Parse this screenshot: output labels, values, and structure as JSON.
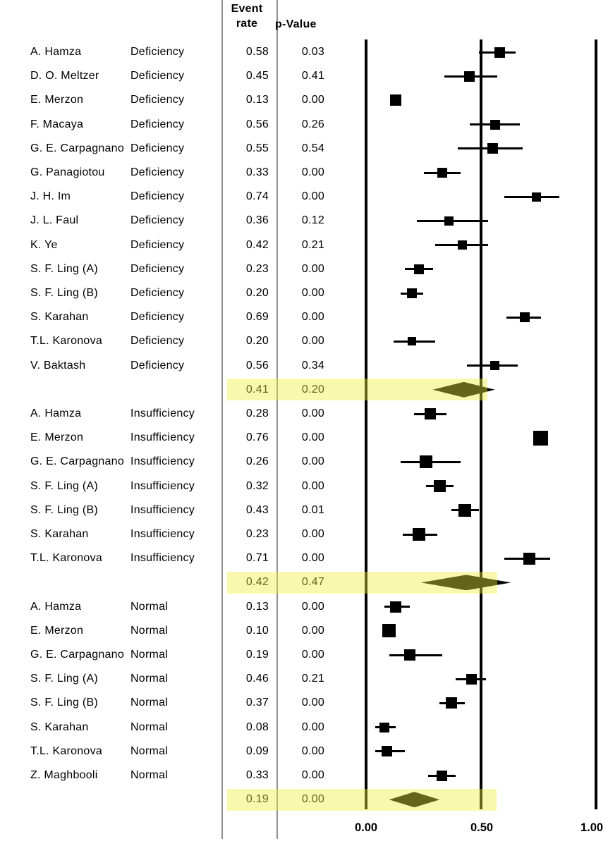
{
  "table": {
    "header_event_line1": "Event",
    "header_event_line2": "rate",
    "header_p_value": "p-Value"
  },
  "colors": {
    "highlight_band_overlay": "rgba(240,240,60,0.42)",
    "highlight_band_on_white": "#f8f8b0",
    "summary_diamond_olive_seen": "#62621a",
    "marker": "#000000",
    "column_line": "#8f8f8f"
  },
  "chart_data": {
    "type": "forest",
    "title": "",
    "xlabel": "",
    "x_axis": {
      "range": [
        0,
        1
      ],
      "ticks": [
        0,
        0.5,
        1
      ],
      "tick_labels": [
        "0.00",
        "0.50",
        "1.00"
      ]
    },
    "value_columns": [
      "Event rate",
      "p-Value"
    ],
    "groups": [
      {
        "label": "Deficiency",
        "studies": [
          {
            "study": "A. Hamza",
            "event_rate": 0.58,
            "p_value": 0.03,
            "ci_low": 0.49,
            "ci_high": 0.65,
            "marker_size": 15
          },
          {
            "study": "D. O. Meltzer",
            "event_rate": 0.45,
            "p_value": 0.41,
            "ci_low": 0.34,
            "ci_high": 0.57,
            "marker_size": 15
          },
          {
            "study": "E. Merzon",
            "event_rate": 0.13,
            "p_value": 0,
            "ci_low": 0.12,
            "ci_high": 0.15,
            "marker_size": 16
          },
          {
            "study": "F. Macaya",
            "event_rate": 0.56,
            "p_value": 0.26,
            "ci_low": 0.45,
            "ci_high": 0.67,
            "marker_size": 14
          },
          {
            "study": "G. E. Carpagnano",
            "event_rate": 0.55,
            "p_value": 0.54,
            "ci_low": 0.4,
            "ci_high": 0.68,
            "marker_size": 15
          },
          {
            "study": "G. Panagiotou",
            "event_rate": 0.33,
            "p_value": 0,
            "ci_low": 0.25,
            "ci_high": 0.41,
            "marker_size": 14
          },
          {
            "study": "J. H. Im",
            "event_rate": 0.74,
            "p_value": 0,
            "ci_low": 0.6,
            "ci_high": 0.84,
            "marker_size": 13
          },
          {
            "study": "J. L. Faul",
            "event_rate": 0.36,
            "p_value": 0.12,
            "ci_low": 0.22,
            "ci_high": 0.53,
            "marker_size": 13
          },
          {
            "study": "K. Ye",
            "event_rate": 0.42,
            "p_value": 0.21,
            "ci_low": 0.3,
            "ci_high": 0.53,
            "marker_size": 13
          },
          {
            "study": "S. F. Ling (A)",
            "event_rate": 0.23,
            "p_value": 0,
            "ci_low": 0.17,
            "ci_high": 0.29,
            "marker_size": 14
          },
          {
            "study": "S. F. Ling (B)",
            "event_rate": 0.2,
            "p_value": 0,
            "ci_low": 0.15,
            "ci_high": 0.25,
            "marker_size": 14
          },
          {
            "study": "S. Karahan",
            "event_rate": 0.69,
            "p_value": 0,
            "ci_low": 0.61,
            "ci_high": 0.76,
            "marker_size": 14
          },
          {
            "study": "T.L. Karonova",
            "event_rate": 0.2,
            "p_value": 0,
            "ci_low": 0.12,
            "ci_high": 0.3,
            "marker_size": 12
          },
          {
            "study": "V. Baktash",
            "event_rate": 0.56,
            "p_value": 0.34,
            "ci_low": 0.44,
            "ci_high": 0.66,
            "marker_size": 13
          }
        ],
        "summary": {
          "event_rate": 0.41,
          "p_value": 0.2,
          "ci_low": 0.29,
          "ci_high": 0.56,
          "highlighted": true
        }
      },
      {
        "label": "Insufficiency",
        "studies": [
          {
            "study": "A. Hamza",
            "event_rate": 0.28,
            "p_value": 0,
            "ci_low": 0.21,
            "ci_high": 0.35,
            "marker_size": 16
          },
          {
            "study": "E. Merzon",
            "event_rate": 0.76,
            "p_value": 0,
            "ci_low": 0.75,
            "ci_high": 0.77,
            "marker_size": 21
          },
          {
            "study": "G. E. Carpagnano",
            "event_rate": 0.26,
            "p_value": 0,
            "ci_low": 0.15,
            "ci_high": 0.41,
            "marker_size": 18
          },
          {
            "study": "S. F. Ling (A)",
            "event_rate": 0.32,
            "p_value": 0,
            "ci_low": 0.26,
            "ci_high": 0.38,
            "marker_size": 17
          },
          {
            "study": "S. F. Ling (B)",
            "event_rate": 0.43,
            "p_value": 0.01,
            "ci_low": 0.37,
            "ci_high": 0.49,
            "marker_size": 18
          },
          {
            "study": "S. Karahan",
            "event_rate": 0.23,
            "p_value": 0,
            "ci_low": 0.16,
            "ci_high": 0.31,
            "marker_size": 18
          },
          {
            "study": "T.L. Karonova",
            "event_rate": 0.71,
            "p_value": 0,
            "ci_low": 0.6,
            "ci_high": 0.8,
            "marker_size": 17
          }
        ],
        "summary": {
          "event_rate": 0.42,
          "p_value": 0.47,
          "ci_low": 0.24,
          "ci_high": 0.63,
          "highlighted": true
        }
      },
      {
        "label": "Normal",
        "studies": [
          {
            "study": "A. Hamza",
            "event_rate": 0.13,
            "p_value": 0,
            "ci_low": 0.08,
            "ci_high": 0.19,
            "marker_size": 16
          },
          {
            "study": "E. Merzon",
            "event_rate": 0.1,
            "p_value": 0,
            "ci_low": 0.09,
            "ci_high": 0.11,
            "marker_size": 19
          },
          {
            "study": "G. E. Carpagnano",
            "event_rate": 0.19,
            "p_value": 0,
            "ci_low": 0.1,
            "ci_high": 0.33,
            "marker_size": 16
          },
          {
            "study": "S. F. Ling (A)",
            "event_rate": 0.46,
            "p_value": 0.21,
            "ci_low": 0.39,
            "ci_high": 0.52,
            "marker_size": 15
          },
          {
            "study": "S. F. Ling (B)",
            "event_rate": 0.37,
            "p_value": 0,
            "ci_low": 0.32,
            "ci_high": 0.43,
            "marker_size": 16
          },
          {
            "study": "S. Karahan",
            "event_rate": 0.08,
            "p_value": 0,
            "ci_low": 0.04,
            "ci_high": 0.13,
            "marker_size": 14
          },
          {
            "study": "T.L. Karonova",
            "event_rate": 0.09,
            "p_value": 0,
            "ci_low": 0.04,
            "ci_high": 0.17,
            "marker_size": 15
          },
          {
            "study": "Z. Maghbooli",
            "event_rate": 0.33,
            "p_value": 0,
            "ci_low": 0.27,
            "ci_high": 0.39,
            "marker_size": 15
          }
        ],
        "summary": {
          "event_rate": 0.19,
          "p_value": 0,
          "ci_low": 0.1,
          "ci_high": 0.32,
          "highlighted": true
        }
      }
    ]
  }
}
